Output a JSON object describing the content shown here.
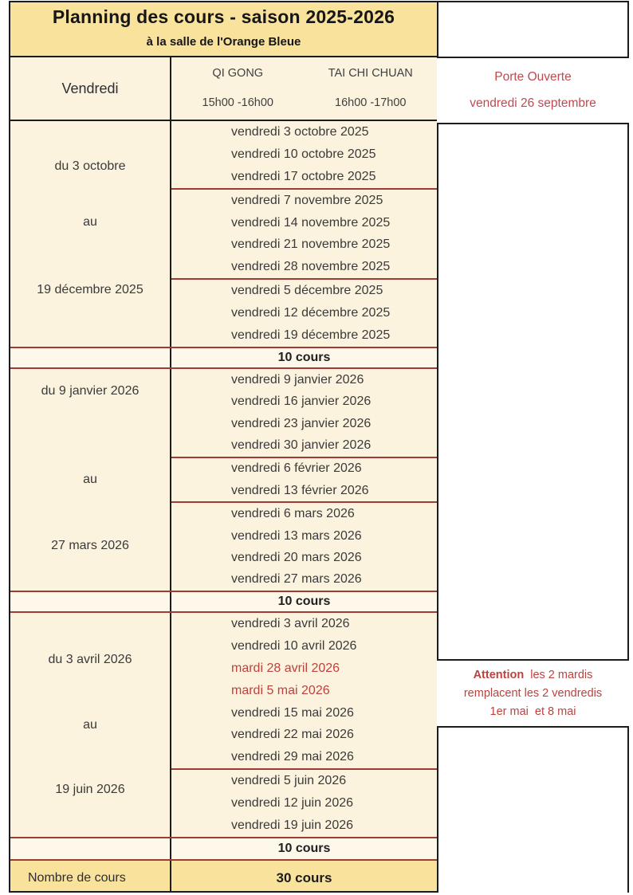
{
  "header": {
    "title": "Planning des cours - saison 2025-2026",
    "subtitle": "à la salle de l'Orange Bleue"
  },
  "schedule_header": {
    "day": "Vendredi",
    "courses": [
      {
        "name": "QI GONG",
        "time": "15h00 -16h00"
      },
      {
        "name": "TAI CHI CHUAN",
        "time": "16h00 -17h00"
      }
    ]
  },
  "open_door": {
    "line1": "Porte Ouverte",
    "line2": "vendredi 26 septembre"
  },
  "blocks": [
    {
      "period": {
        "from": "du 3 octobre",
        "middle": "au",
        "to": "19 décembre 2025"
      },
      "total": "10 cours",
      "dates": [
        {
          "label": "vendredi 3 octobre 2025",
          "red": false,
          "sep_before": false
        },
        {
          "label": "vendredi 10 octobre 2025",
          "red": false,
          "sep_before": false
        },
        {
          "label": "vendredi 17 octobre 2025",
          "red": false,
          "sep_before": false
        },
        {
          "label": "vendredi 7 novembre 2025",
          "red": false,
          "sep_before": true
        },
        {
          "label": "vendredi 14 novembre 2025",
          "red": false,
          "sep_before": false
        },
        {
          "label": "vendredi 21 novembre 2025",
          "red": false,
          "sep_before": false
        },
        {
          "label": "vendredi 28 novembre 2025",
          "red": false,
          "sep_before": false
        },
        {
          "label": "vendredi 5 décembre 2025",
          "red": false,
          "sep_before": true
        },
        {
          "label": "vendredi 12 décembre 2025",
          "red": false,
          "sep_before": false
        },
        {
          "label": "vendredi 19 décembre 2025",
          "red": false,
          "sep_before": false
        }
      ]
    },
    {
      "period": {
        "from": "du 9 janvier 2026",
        "middle": "au",
        "to": "27 mars 2026"
      },
      "total": "10 cours",
      "dates": [
        {
          "label": "vendredi 9 janvier 2026",
          "red": false,
          "sep_before": false
        },
        {
          "label": "vendredi 16 janvier 2026",
          "red": false,
          "sep_before": false
        },
        {
          "label": "vendredi 23 janvier 2026",
          "red": false,
          "sep_before": false
        },
        {
          "label": "vendredi 30 janvier 2026",
          "red": false,
          "sep_before": false
        },
        {
          "label": "vendredi 6 février 2026",
          "red": false,
          "sep_before": true
        },
        {
          "label": "vendredi 13 février 2026",
          "red": false,
          "sep_before": false
        },
        {
          "label": "vendredi 6 mars 2026",
          "red": false,
          "sep_before": true
        },
        {
          "label": "vendredi 13 mars 2026",
          "red": false,
          "sep_before": false
        },
        {
          "label": "vendredi 20 mars 2026",
          "red": false,
          "sep_before": false
        },
        {
          "label": "vendredi 27 mars 2026",
          "red": false,
          "sep_before": false
        }
      ]
    },
    {
      "period": {
        "from": "du 3 avril 2026",
        "middle": "au",
        "to": "19 juin 2026"
      },
      "total": "10 cours",
      "dates": [
        {
          "label": "vendredi 3 avril 2026",
          "red": false,
          "sep_before": false
        },
        {
          "label": "vendredi 10 avril 2026",
          "red": false,
          "sep_before": false
        },
        {
          "label": "mardi 28 avril 2026",
          "red": true,
          "sep_before": false
        },
        {
          "label": "mardi 5 mai 2026",
          "red": true,
          "sep_before": false
        },
        {
          "label": "vendredi 15 mai 2026",
          "red": false,
          "sep_before": false
        },
        {
          "label": "vendredi 22 mai 2026",
          "red": false,
          "sep_before": false
        },
        {
          "label": "vendredi 29 mai 2026",
          "red": false,
          "sep_before": false
        },
        {
          "label": "vendredi 5 juin 2026",
          "red": false,
          "sep_before": true
        },
        {
          "label": "vendredi 12 juin 2026",
          "red": false,
          "sep_before": false
        },
        {
          "label": "vendredi 19 juin 2026",
          "red": false,
          "sep_before": false
        }
      ]
    }
  ],
  "attention": {
    "bold": "Attention",
    "line1_rest": "  les 2 mardis",
    "line2": "remplacent les 2 vendredis",
    "line3": "1er mai  et 8 mai"
  },
  "footer": {
    "label": "Nombre de cours",
    "total": "30 cours"
  },
  "colors": {
    "table_bg": "#fbf3de",
    "header_bg": "#f8e29c",
    "count_bg": "#fdf8ea",
    "border_dark": "#1c1c1c",
    "border_red": "#9e3b34",
    "red_text": "#c1494f",
    "red_date": "#bb423e",
    "text": "#3a3a3a"
  }
}
